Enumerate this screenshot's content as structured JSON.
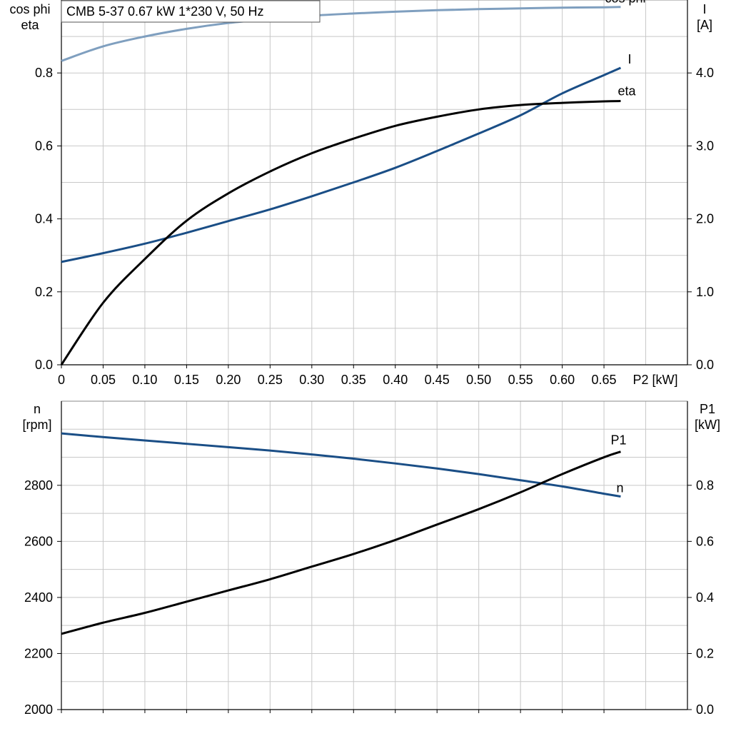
{
  "colors": {
    "cos_phi": "#7f9fbf",
    "current": "#1a4e86",
    "eta": "#000000",
    "speed": "#1a4e86",
    "p1": "#000000",
    "grid": "#c8c8c8"
  },
  "title_box": "CMB 5-37   0.67 kW   1*230 V, 50 Hz",
  "chart_data": [
    {
      "type": "line",
      "title": "CMB 5-37   0.67 kW   1*230 V, 50 Hz",
      "xlabel": "P2 [kW]",
      "ylabel_left_line1": "cos phi",
      "ylabel_left_line2": "eta",
      "ylabel_right_line1": "I",
      "ylabel_right_line2": "[A]",
      "xlim": [
        0,
        0.75
      ],
      "ylim_left": [
        0,
        1.0
      ],
      "ylim_right": [
        0,
        5.0
      ],
      "grid": true,
      "x_ticks": [
        "0",
        "0.05",
        "0.10",
        "0.15",
        "0.20",
        "0.25",
        "0.30",
        "0.35",
        "0.40",
        "0.45",
        "0.50",
        "0.55",
        "0.60",
        "0.65"
      ],
      "y_left_ticks": [
        "0.0",
        "0.2",
        "0.4",
        "0.6",
        "0.8"
      ],
      "y_right_ticks": [
        "0.0",
        "1.0",
        "2.0",
        "3.0",
        "4.0"
      ],
      "x": [
        0,
        0.05,
        0.1,
        0.15,
        0.2,
        0.25,
        0.3,
        0.35,
        0.4,
        0.45,
        0.5,
        0.55,
        0.6,
        0.65,
        0.67
      ],
      "series": [
        {
          "name": "cos phi",
          "axis": "left",
          "values": [
            0.833,
            0.873,
            0.9,
            0.921,
            0.937,
            0.948,
            0.957,
            0.963,
            0.968,
            0.972,
            0.975,
            0.977,
            0.979,
            0.98,
            0.981
          ]
        },
        {
          "name": "I",
          "axis": "right",
          "values": [
            1.41,
            1.53,
            1.66,
            1.81,
            1.97,
            2.13,
            2.31,
            2.5,
            2.7,
            2.93,
            3.17,
            3.42,
            3.72,
            3.97,
            4.07
          ]
        },
        {
          "name": "eta",
          "axis": "left",
          "values": [
            0.0,
            0.17,
            0.29,
            0.395,
            0.47,
            0.53,
            0.58,
            0.62,
            0.655,
            0.68,
            0.7,
            0.712,
            0.718,
            0.722,
            0.723
          ]
        }
      ]
    },
    {
      "type": "line",
      "ylabel_left_line1": "n",
      "ylabel_left_line2": "[rpm]",
      "ylabel_right_line1": "P1",
      "ylabel_right_line2": "[kW]",
      "xlim": [
        0,
        0.75
      ],
      "ylim_left": [
        2000,
        3100
      ],
      "ylim_right": [
        0,
        1.1
      ],
      "grid": true,
      "y_left_ticks": [
        "2000",
        "2200",
        "2400",
        "2600",
        "2800"
      ],
      "y_right_ticks": [
        "0.0",
        "0.2",
        "0.4",
        "0.6",
        "0.8"
      ],
      "x": [
        0,
        0.05,
        0.1,
        0.15,
        0.2,
        0.25,
        0.3,
        0.35,
        0.4,
        0.45,
        0.5,
        0.55,
        0.6,
        0.65,
        0.67
      ],
      "series": [
        {
          "name": "n",
          "axis": "left",
          "values": [
            2985,
            2972,
            2960,
            2948,
            2936,
            2924,
            2910,
            2895,
            2878,
            2860,
            2840,
            2818,
            2796,
            2770,
            2760
          ]
        },
        {
          "name": "P1",
          "axis": "right",
          "values": [
            0.27,
            0.31,
            0.345,
            0.385,
            0.425,
            0.465,
            0.51,
            0.555,
            0.605,
            0.66,
            0.715,
            0.775,
            0.84,
            0.9,
            0.92
          ]
        }
      ]
    }
  ]
}
